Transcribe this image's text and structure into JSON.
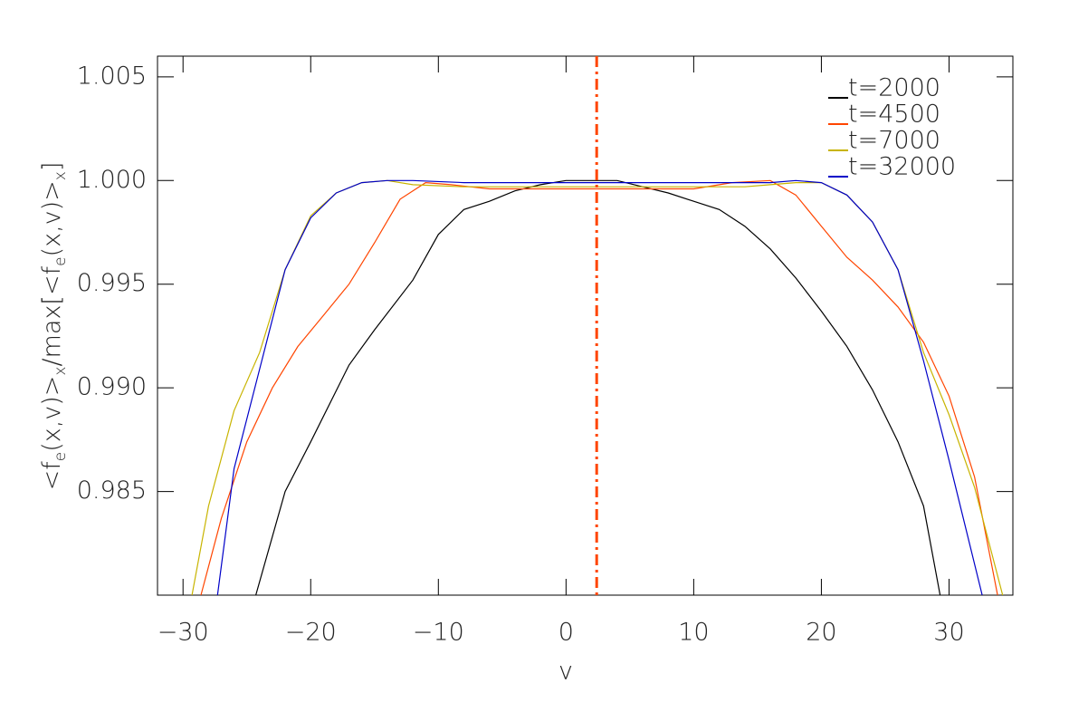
{
  "chart_data": {
    "type": "line",
    "xlabel": "v",
    "ylabel": [
      {
        "text": "<f"
      },
      {
        "text": "e",
        "sub": true
      },
      {
        "text": "(x,v)>"
      },
      {
        "text": "x",
        "sub": true
      },
      {
        "text": "/max[<f"
      },
      {
        "text": "e",
        "sub": true
      },
      {
        "text": "(x,v)>"
      },
      {
        "text": "x",
        "sub": true
      },
      {
        "text": "]"
      }
    ],
    "xlim": [
      -32,
      35
    ],
    "ylim": [
      0.98,
      1.006
    ],
    "xticks": [
      {
        "value": -30,
        "label": "−30"
      },
      {
        "value": -20,
        "label": "−20"
      },
      {
        "value": -10,
        "label": "−10"
      },
      0,
      10,
      20,
      30
    ],
    "yticks": [
      {
        "value": 0.985,
        "label": "0.985"
      },
      {
        "value": 0.99,
        "label": "0.990"
      },
      {
        "value": 0.995,
        "label": "0.995"
      },
      {
        "value": 1,
        "label": "1.000"
      },
      {
        "value": 1.005,
        "label": "1.005"
      }
    ],
    "vline": {
      "x": 2.4,
      "color": "#ff4500"
    },
    "legend": "top-right",
    "series": [
      {
        "name": "t=2000",
        "color": "#000000",
        "x": [
          -24.3,
          -22,
          -20,
          -17,
          -15,
          -12,
          -10,
          -8,
          -6,
          -4,
          -2,
          0,
          2,
          4,
          6,
          8,
          10,
          12,
          14,
          16,
          18,
          20,
          22,
          24,
          26,
          28,
          29.3
        ],
        "values": [
          0.98,
          0.985,
          0.9874,
          0.9911,
          0.9928,
          0.9952,
          0.9974,
          0.9986,
          0.999,
          0.9995,
          0.9998,
          1.0,
          1.0,
          1.0,
          0.9997,
          0.9994,
          0.999,
          0.9986,
          0.9978,
          0.9967,
          0.9953,
          0.9937,
          0.992,
          0.9899,
          0.9874,
          0.9843,
          0.98
        ]
      },
      {
        "name": "t=4500",
        "color": "#ff4500",
        "x": [
          -28.6,
          -27,
          -25,
          -23,
          -21,
          -19,
          -17,
          -15,
          -13,
          -11,
          -9,
          -6,
          0,
          6,
          10,
          13,
          16,
          18,
          20,
          22,
          24,
          26,
          28,
          30,
          32,
          33.8
        ],
        "values": [
          0.98,
          0.9837,
          0.9874,
          0.99,
          0.992,
          0.9935,
          0.995,
          0.997,
          0.9991,
          0.9999,
          0.9998,
          0.9996,
          0.9996,
          0.9996,
          0.9996,
          0.9999,
          1.0,
          0.9993,
          0.9978,
          0.9963,
          0.9952,
          0.9939,
          0.9922,
          0.9896,
          0.9857,
          0.98
        ]
      },
      {
        "name": "t=7000",
        "color": "#c8b400",
        "x": [
          -29.3,
          -28,
          -26,
          -24,
          -22,
          -20,
          -18,
          -16,
          -14,
          -12,
          -8,
          0,
          8,
          14,
          16,
          18,
          20,
          22,
          24,
          26,
          28,
          30,
          32,
          34.2
        ],
        "values": [
          0.98,
          0.9843,
          0.9889,
          0.9917,
          0.9957,
          0.9983,
          0.9994,
          0.9999,
          1.0,
          0.9998,
          0.9997,
          0.9997,
          0.9997,
          0.9997,
          0.9998,
          0.9999,
          0.9999,
          0.9993,
          0.998,
          0.9957,
          0.9917,
          0.9887,
          0.9852,
          0.98
        ]
      },
      {
        "name": "t=32000",
        "color": "#0000c8",
        "x": [
          -27.3,
          -26,
          -24,
          -22,
          -20,
          -18,
          -16,
          -14,
          -12,
          -8,
          0,
          10,
          16,
          18,
          20,
          22,
          24,
          26,
          28,
          30,
          32.6
        ],
        "values": [
          0.98,
          0.9861,
          0.9909,
          0.9957,
          0.9982,
          0.9994,
          0.9999,
          1.0,
          1.0,
          0.9999,
          0.9999,
          0.9999,
          0.9999,
          1.0,
          0.9999,
          0.9993,
          0.998,
          0.9957,
          0.9913,
          0.9865,
          0.98
        ]
      }
    ]
  }
}
